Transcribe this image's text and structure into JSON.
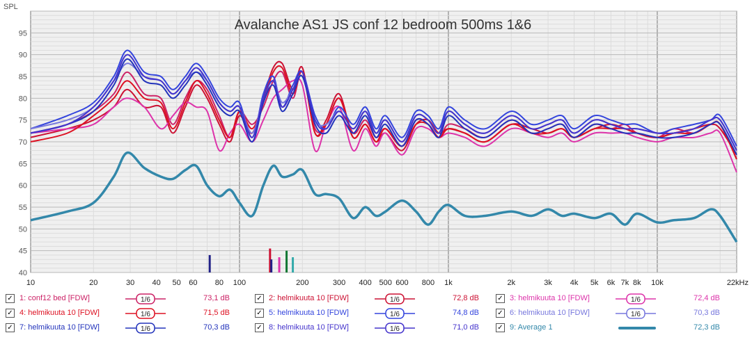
{
  "chart_data": {
    "type": "line",
    "title": "Avalanche AS1 JS conf 12 bedroom 500ms 1&6",
    "ylabel": "SPL",
    "xscale": "log",
    "xlim": [
      10,
      24000
    ],
    "ylim": [
      40,
      100
    ],
    "grid": true,
    "x_tick_values": [
      10,
      20,
      30,
      40,
      50,
      60,
      80,
      100,
      200,
      300,
      400,
      500,
      600,
      800,
      1000,
      2000,
      3000,
      4000,
      5000,
      6000,
      7000,
      8000,
      10000,
      22000
    ],
    "x_tick_labels": [
      "10",
      "20",
      "30",
      "40",
      "50",
      "60",
      "80",
      "100",
      "200",
      "300",
      "400",
      "500",
      "600",
      "800",
      "1k",
      "2k",
      "3k",
      "4k",
      "5k",
      "6k",
      "7k",
      "8k",
      "10k",
      "22kHz"
    ],
    "y_tick_values": [
      40,
      45,
      50,
      55,
      60,
      65,
      70,
      75,
      80,
      85,
      90,
      95
    ],
    "y_tick_labels": [
      "40",
      "45",
      "50",
      "55",
      "60",
      "65",
      "70",
      "75",
      "80",
      "85",
      "90",
      "95"
    ],
    "x": [
      10,
      15,
      20,
      25,
      29,
      35,
      42,
      48,
      55,
      62,
      70,
      80,
      90,
      100,
      115,
      130,
      145,
      160,
      180,
      200,
      230,
      260,
      300,
      350,
      400,
      450,
      500,
      600,
      700,
      800,
      900,
      1000,
      1200,
      1500,
      2000,
      2500,
      3000,
      3500,
      4000,
      5000,
      6000,
      7000,
      8000,
      10000,
      12000,
      15000,
      18000,
      20000,
      24000
    ],
    "series": [
      {
        "name": "1: conf12 bed [FDW]",
        "color": "#cc2266",
        "values": [
          72,
          74,
          77,
          81,
          86,
          81,
          80,
          74,
          80,
          84,
          82,
          76,
          71,
          77,
          74,
          78,
          84,
          86,
          80,
          86,
          73,
          74,
          80,
          72,
          75,
          71,
          73,
          69,
          75,
          74,
          71,
          74,
          73,
          71,
          75,
          72,
          73,
          74,
          71,
          74,
          73,
          74,
          72,
          71,
          73,
          72,
          74,
          74,
          66
        ]
      },
      {
        "name": "2: helmikuuta 10 [FDW]",
        "color": "#cc1133",
        "values": [
          71,
          73,
          75,
          78,
          82,
          78,
          78,
          72,
          78,
          83,
          80,
          74,
          70,
          76,
          72,
          80,
          87,
          88,
          82,
          87,
          72,
          75,
          81,
          71,
          74,
          70,
          72,
          68,
          74,
          75,
          72,
          73,
          72,
          70,
          74,
          73,
          72,
          73,
          71,
          73,
          74,
          73,
          72,
          71,
          72,
          73,
          74,
          73,
          67
        ]
      },
      {
        "name": "3: helmikuuta 10 [FDW]",
        "color": "#dd33aa",
        "values": [
          72,
          73,
          74,
          78,
          80,
          78,
          73,
          76,
          79,
          78,
          77,
          68,
          72,
          74,
          70,
          75,
          80,
          82,
          84,
          83,
          68,
          74,
          78,
          68,
          73,
          69,
          72,
          67,
          73,
          73,
          71,
          72,
          71,
          69,
          73,
          72,
          71,
          72,
          70,
          72,
          72,
          72,
          71,
          70,
          71,
          71,
          72,
          72,
          63
        ]
      },
      {
        "name": "4: helmikuuta 10 [FDW]",
        "color": "#dd1122",
        "values": [
          70,
          72,
          76,
          80,
          84,
          80,
          79,
          73,
          79,
          84,
          81,
          75,
          71,
          77,
          73,
          79,
          86,
          87,
          81,
          86,
          72,
          74,
          80,
          71,
          74,
          70,
          73,
          69,
          74,
          74,
          71,
          73,
          72,
          70,
          74,
          72,
          72,
          73,
          71,
          73,
          73,
          73,
          72,
          71,
          72,
          72,
          74,
          74,
          66
        ]
      },
      {
        "name": "5: helmikuuta 10 [FDW]",
        "color": "#3344dd",
        "values": [
          73,
          76,
          79,
          85,
          91,
          86,
          85,
          82,
          85,
          88,
          85,
          80,
          78,
          79,
          71,
          81,
          85,
          78,
          83,
          86,
          76,
          73,
          78,
          74,
          78,
          73,
          76,
          71,
          77,
          76,
          73,
          78,
          75,
          73,
          77,
          74,
          75,
          76,
          73,
          76,
          75,
          74,
          74,
          72,
          73,
          74,
          75,
          76,
          69
        ]
      },
      {
        "name": "6: helmikuuta 10 [FDW]",
        "color": "#7777dd",
        "values": [
          73,
          75,
          78,
          84,
          88,
          85,
          84,
          81,
          84,
          86,
          84,
          79,
          77,
          78,
          72,
          80,
          84,
          79,
          82,
          85,
          75,
          74,
          77,
          73,
          77,
          72,
          75,
          70,
          76,
          75,
          72,
          77,
          74,
          72,
          76,
          73,
          74,
          75,
          72,
          75,
          74,
          73,
          73,
          72,
          72,
          73,
          75,
          75,
          68
        ]
      },
      {
        "name": "7: helmikuuta 10 [FDW]",
        "color": "#2233bb",
        "values": [
          72,
          74,
          77,
          83,
          89,
          84,
          83,
          80,
          83,
          86,
          83,
          78,
          76,
          77,
          70,
          79,
          83,
          77,
          81,
          85,
          74,
          72,
          76,
          72,
          76,
          71,
          74,
          69,
          75,
          74,
          71,
          76,
          73,
          71,
          75,
          72,
          73,
          74,
          71,
          74,
          73,
          72,
          72,
          71,
          71,
          72,
          74,
          74,
          67
        ]
      },
      {
        "name": "8: helmikuuta 10 [FDW]",
        "color": "#4433cc",
        "values": [
          72,
          74,
          78,
          84,
          90,
          85,
          84,
          81,
          84,
          87,
          84,
          79,
          77,
          78,
          71,
          80,
          84,
          78,
          82,
          86,
          75,
          73,
          77,
          73,
          77,
          72,
          75,
          70,
          76,
          75,
          72,
          77,
          74,
          72,
          76,
          73,
          74,
          75,
          72,
          75,
          74,
          73,
          73,
          72,
          72,
          73,
          75,
          75,
          68
        ]
      },
      {
        "name": "9: Average 1",
        "color": "#3388aa",
        "values": [
          52,
          54,
          56,
          62,
          67.5,
          64,
          62,
          61.5,
          63.5,
          64.5,
          60,
          57.5,
          59,
          56,
          53,
          60,
          64.5,
          62,
          62.5,
          63.5,
          58,
          58,
          57,
          52.5,
          55,
          53,
          54,
          56.5,
          54,
          51,
          54,
          55.5,
          53,
          53,
          54,
          53,
          54.5,
          53,
          53.5,
          52.5,
          53.5,
          51,
          53.5,
          51.5,
          52,
          52.5,
          54.5,
          53,
          47
        ]
      }
    ],
    "markers": [
      {
        "x": 72,
        "height": 44,
        "color": "#222288"
      },
      {
        "x": 140,
        "height": 45.5,
        "color": "#cc1133"
      },
      {
        "x": 142,
        "height": 43,
        "color": "#222288"
      },
      {
        "x": 155,
        "height": 43.5,
        "color": "#dd33aa"
      },
      {
        "x": 168,
        "height": 45,
        "color": "#117733"
      },
      {
        "x": 180,
        "height": 43.5,
        "color": "#33aaaa"
      }
    ]
  },
  "legend": {
    "items": [
      {
        "label": "1: conf12 bed [FDW]",
        "smoothing": "1/6",
        "value": "73,1 dB",
        "color": "#cc2266",
        "checked": true
      },
      {
        "label": "2: helmikuuta 10 [FDW]",
        "smoothing": "1/6",
        "value": "72,8 dB",
        "color": "#cc1133",
        "checked": true
      },
      {
        "label": "3: helmikuuta 10 [FDW]",
        "smoothing": "1/6",
        "value": "72,4 dB",
        "color": "#dd33aa",
        "checked": true
      },
      {
        "label": "4: helmikuuta 10 [FDW]",
        "smoothing": "1/6",
        "value": "71,5 dB",
        "color": "#dd1122",
        "checked": true
      },
      {
        "label": "5: helmikuuta 10 [FDW]",
        "smoothing": "1/6",
        "value": "74,8 dB",
        "color": "#3344dd",
        "checked": true
      },
      {
        "label": "6: helmikuuta 10 [FDW]",
        "smoothing": "1/6",
        "value": "70,3 dB",
        "color": "#7777dd",
        "checked": true
      },
      {
        "label": "7: helmikuuta 10 [FDW]",
        "smoothing": "1/6",
        "value": "70,3 dB",
        "color": "#2233bb",
        "checked": true
      },
      {
        "label": "8: helmikuuta 10 [FDW]",
        "smoothing": "1/6",
        "value": "71,0 dB",
        "color": "#4433cc",
        "checked": true
      },
      {
        "label": "9: Average 1",
        "smoothing": "",
        "value": "72,3 dB",
        "color": "#3388aa",
        "checked": true
      }
    ]
  },
  "colors": {
    "plot_background": "#f0f0f0",
    "grid_major": "#b8b8b8",
    "grid_minor": "#dcdcdc",
    "average_line": "#3388aa"
  }
}
